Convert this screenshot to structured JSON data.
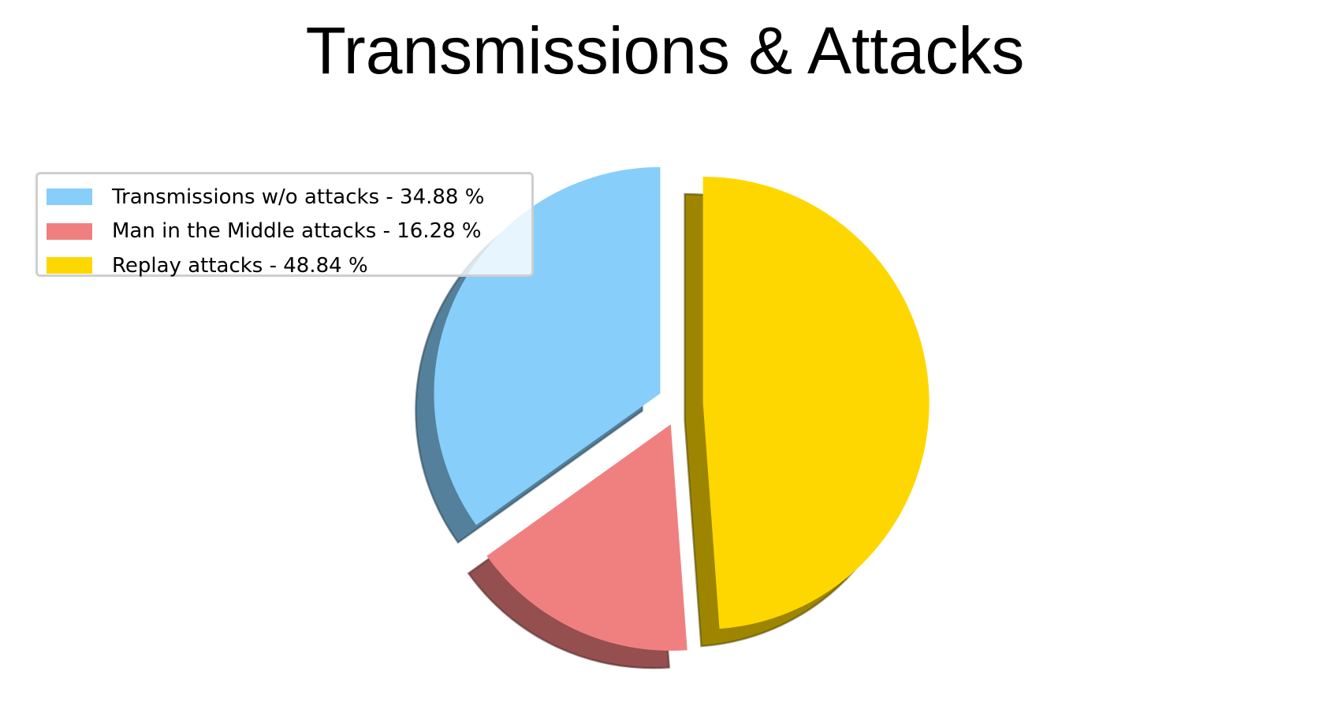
{
  "chart_data": {
    "type": "pie",
    "title": "Transmissions & Attacks",
    "slices": [
      {
        "label": "Transmissions w/o attacks - 34.88 %",
        "value": 34.88,
        "color": "#87CEFA",
        "exploded": true
      },
      {
        "label": "Man in the Middle attacks - 16.28 %",
        "value": 16.28,
        "color": "#F08080",
        "exploded": true
      },
      {
        "label": "Replay attacks - 48.84 %",
        "value": 48.84,
        "color": "#FFD700",
        "exploded": true
      }
    ],
    "start_angle_deg": 90,
    "direction": "counterclockwise",
    "shadow": true,
    "legend": "upper-left"
  }
}
